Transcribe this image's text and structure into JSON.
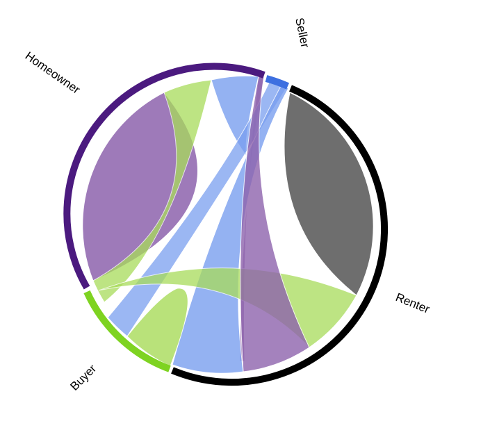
{
  "diagram": {
    "type": "chord",
    "groups": [
      {
        "id": "homeowner",
        "label": "Homeowner",
        "color": "#4b1a7f"
      },
      {
        "id": "seller",
        "label": "Seller",
        "color": "#3d6fe0"
      },
      {
        "id": "renter",
        "label": "Renter",
        "color": "#000000"
      },
      {
        "id": "buyer",
        "label": "Buyer",
        "color": "#7ed321"
      }
    ],
    "ribbon_colors": {
      "homeowner": "#8e63ad",
      "seller": "#7a9ff0",
      "renter": "#555555",
      "buyer": "#a8dc5a"
    }
  }
}
